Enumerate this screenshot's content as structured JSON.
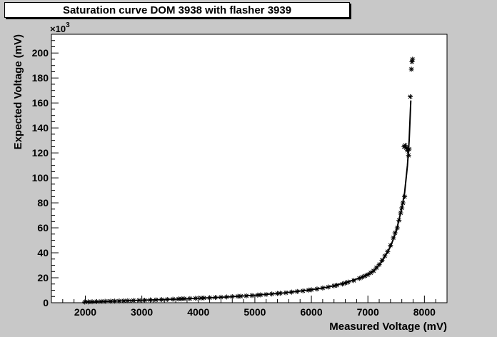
{
  "chart_data": {
    "type": "scatter",
    "title": "Saturation curve DOM 3938 with flasher 3939",
    "xlabel": "Measured Voltage (mV)",
    "ylabel": "Expected Voltage (mV)",
    "y_multiplier": "×10",
    "y_multiplier_exp": "3",
    "xlim": [
      1400,
      8400
    ],
    "ylim": [
      0,
      215
    ],
    "x_ticks": [
      2000,
      3000,
      4000,
      5000,
      6000,
      7000,
      8000
    ],
    "y_ticks": [
      0,
      20,
      40,
      60,
      80,
      100,
      120,
      140,
      160,
      180,
      200
    ],
    "marker": "*",
    "series": [
      {
        "points": [
          [
            1990,
            0.6
          ],
          [
            2050,
            0.7
          ],
          [
            2120,
            0.8
          ],
          [
            2200,
            0.9
          ],
          [
            2280,
            1.0
          ],
          [
            2350,
            1.1
          ],
          [
            2450,
            1.2
          ],
          [
            2520,
            1.3
          ],
          [
            2600,
            1.4
          ],
          [
            2680,
            1.5
          ],
          [
            2750,
            1.6
          ],
          [
            2850,
            1.8
          ],
          [
            2950,
            1.9
          ],
          [
            3050,
            2.0
          ],
          [
            3150,
            2.2
          ],
          [
            3250,
            2.3
          ],
          [
            3350,
            2.5
          ],
          [
            3450,
            2.6
          ],
          [
            3550,
            2.8
          ],
          [
            3650,
            3.0
          ],
          [
            3700,
            3.1
          ],
          [
            3750,
            3.2
          ],
          [
            3850,
            3.3
          ],
          [
            3950,
            3.5
          ],
          [
            4050,
            3.7
          ],
          [
            4100,
            3.8
          ],
          [
            4200,
            4.0
          ],
          [
            4300,
            4.2
          ],
          [
            4400,
            4.4
          ],
          [
            4500,
            4.6
          ],
          [
            4600,
            4.9
          ],
          [
            4700,
            5.1
          ],
          [
            4750,
            5.2
          ],
          [
            4850,
            5.5
          ],
          [
            4950,
            5.8
          ],
          [
            5050,
            6.1
          ],
          [
            5100,
            6.3
          ],
          [
            5200,
            6.6
          ],
          [
            5300,
            7.0
          ],
          [
            5400,
            7.4
          ],
          [
            5450,
            7.6
          ],
          [
            5550,
            8.0
          ],
          [
            5650,
            8.5
          ],
          [
            5750,
            9.0
          ],
          [
            5850,
            9.5
          ],
          [
            5950,
            10.1
          ],
          [
            6000,
            10.4
          ],
          [
            6100,
            11.0
          ],
          [
            6200,
            11.8
          ],
          [
            6300,
            12.6
          ],
          [
            6400,
            13.5
          ],
          [
            6450,
            14.0
          ],
          [
            6550,
            15.0
          ],
          [
            6600,
            15.8
          ],
          [
            6650,
            16.5
          ],
          [
            6750,
            17.8
          ],
          [
            6850,
            19.5
          ],
          [
            6900,
            20.5
          ],
          [
            6950,
            21.5
          ],
          [
            7000,
            22.5
          ],
          [
            7050,
            24.0
          ],
          [
            7100,
            25.5
          ],
          [
            7150,
            28.0
          ],
          [
            7200,
            30.5
          ],
          [
            7250,
            34.0
          ],
          [
            7300,
            37.5
          ],
          [
            7350,
            41.0
          ],
          [
            7400,
            46.0
          ],
          [
            7450,
            52.0
          ],
          [
            7480,
            56.0
          ],
          [
            7520,
            60.0
          ],
          [
            7550,
            66.0
          ],
          [
            7580,
            72.0
          ],
          [
            7600,
            76.0
          ],
          [
            7620,
            80.0
          ],
          [
            7650,
            85.0
          ],
          [
            7640,
            125.0
          ],
          [
            7660,
            126.0
          ],
          [
            7680,
            124.0
          ],
          [
            7700,
            122.0
          ],
          [
            7720,
            118.0
          ],
          [
            7730,
            123.0
          ],
          [
            7750,
            165.0
          ],
          [
            7770,
            187.0
          ],
          [
            7780,
            193.0
          ],
          [
            7790,
            195.0
          ]
        ]
      },
      {
        "type": "line",
        "points": [
          [
            1990,
            0.6
          ],
          [
            2500,
            1.3
          ],
          [
            3000,
            2.0
          ],
          [
            3500,
            2.7
          ],
          [
            4000,
            3.6
          ],
          [
            4500,
            4.6
          ],
          [
            5000,
            6.0
          ],
          [
            5500,
            7.8
          ],
          [
            6000,
            10.4
          ],
          [
            6300,
            12.6
          ],
          [
            6600,
            16.0
          ],
          [
            6900,
            20.5
          ],
          [
            7100,
            25.5
          ],
          [
            7250,
            33.0
          ],
          [
            7400,
            45.0
          ],
          [
            7500,
            57.0
          ],
          [
            7600,
            76.0
          ],
          [
            7650,
            88.0
          ],
          [
            7700,
            110.0
          ],
          [
            7730,
            130.0
          ],
          [
            7760,
            162.0
          ]
        ]
      }
    ]
  }
}
